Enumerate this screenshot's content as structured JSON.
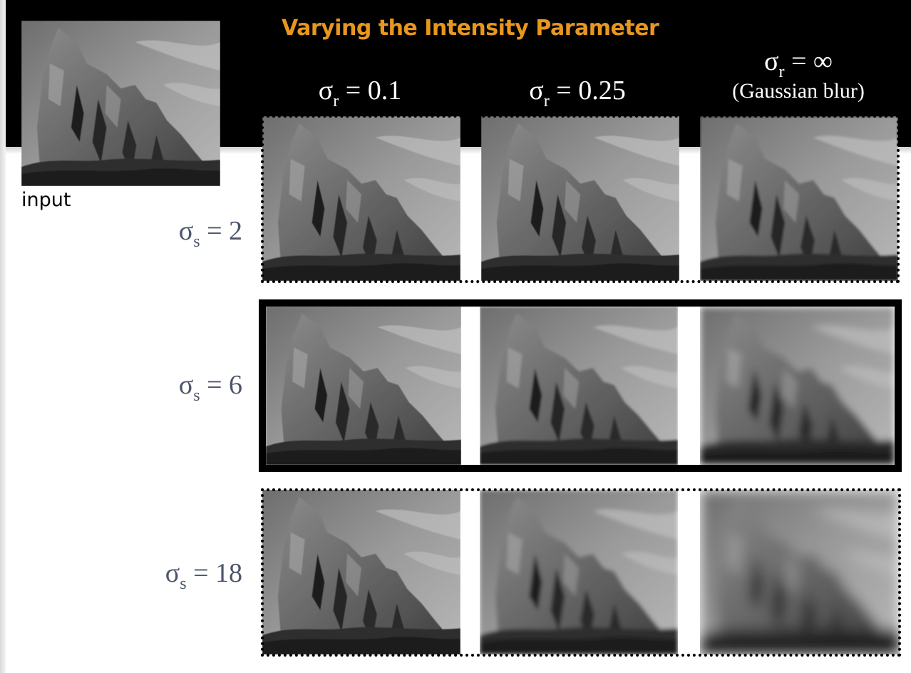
{
  "title": "Varying the Intensity Parameter",
  "input_caption": "input",
  "columns": [
    {
      "symbol": "σ",
      "subscript": "r",
      "value": "0.1",
      "note": ""
    },
    {
      "symbol": "σ",
      "subscript": "r",
      "value": "0.25",
      "note": ""
    },
    {
      "symbol": "σ",
      "subscript": "r",
      "value": "∞",
      "note": "(Gaussian blur)"
    }
  ],
  "rows": [
    {
      "symbol": "σ",
      "subscript": "s",
      "value": "2"
    },
    {
      "symbol": "σ",
      "subscript": "s",
      "value": "6"
    },
    {
      "symbol": "σ",
      "subscript": "s",
      "value": "18"
    }
  ],
  "colors": {
    "title": "#e8971e",
    "header_band": "#000000",
    "row_label": "#4c566a"
  }
}
